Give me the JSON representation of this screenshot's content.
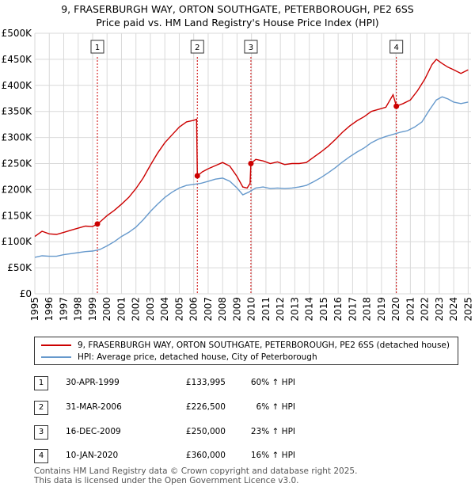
{
  "title_line1": "9, FRASERBURGH WAY, ORTON SOUTHGATE, PETERBOROUGH, PE2 6SS",
  "title_line2": "Price paid vs. HM Land Registry's House Price Index (HPI)",
  "legend": {
    "property": "9, FRASERBURGH WAY, ORTON SOUTHGATE, PETERBOROUGH, PE2 6SS (detached house)",
    "hpi": "HPI: Average price, detached house, City of Peterborough"
  },
  "colors": {
    "property": "#cc0000",
    "hpi": "#6699cc",
    "grid": "#d9d9d9",
    "marker_line": "#cc0000"
  },
  "sales": [
    {
      "num": "1",
      "date": "30-APR-1999",
      "price": "£133,995",
      "hpi": "60% ↑ HPI"
    },
    {
      "num": "2",
      "date": "31-MAR-2006",
      "price": "£226,500",
      "hpi": "6% ↑ HPI"
    },
    {
      "num": "3",
      "date": "16-DEC-2009",
      "price": "£250,000",
      "hpi": "23% ↑ HPI"
    },
    {
      "num": "4",
      "date": "10-JAN-2020",
      "price": "£360,000",
      "hpi": "16% ↑ HPI"
    }
  ],
  "footer_line1": "Contains HM Land Registry data © Crown copyright and database right 2025.",
  "footer_line2": "This data is licensed under the Open Government Licence v3.0.",
  "chart_data": {
    "type": "line",
    "xlim": [
      1995.0,
      2025.2
    ],
    "ylim": [
      0,
      500000
    ],
    "y_ticks": [
      0,
      50000,
      100000,
      150000,
      200000,
      250000,
      300000,
      350000,
      400000,
      450000,
      500000
    ],
    "y_tick_labels": [
      "£0",
      "£50K",
      "£100K",
      "£150K",
      "£200K",
      "£250K",
      "£300K",
      "£350K",
      "£400K",
      "£450K",
      "£500K"
    ],
    "x_ticks": [
      1995,
      1996,
      1997,
      1998,
      1999,
      2000,
      2001,
      2002,
      2003,
      2004,
      2005,
      2006,
      2007,
      2008,
      2009,
      2010,
      2011,
      2012,
      2013,
      2014,
      2015,
      2016,
      2017,
      2018,
      2019,
      2020,
      2021,
      2022,
      2023,
      2024,
      2025
    ],
    "grid": true,
    "sale_markers": [
      {
        "label": "1",
        "x": 1999.33,
        "y": 133995
      },
      {
        "label": "2",
        "x": 2006.25,
        "y": 226500
      },
      {
        "label": "3",
        "x": 2009.96,
        "y": 250000
      },
      {
        "label": "4",
        "x": 2020.03,
        "y": 360000
      }
    ],
    "series": [
      {
        "name": "9, FRASERBURGH WAY, ORTON SOUTHGATE, PETERBOROUGH, PE2 6SS (detached house)",
        "points": [
          [
            1995.0,
            110000
          ],
          [
            1995.5,
            120000
          ],
          [
            1996.0,
            115000
          ],
          [
            1996.5,
            114000
          ],
          [
            1997.0,
            118000
          ],
          [
            1997.5,
            122000
          ],
          [
            1998.0,
            126000
          ],
          [
            1998.5,
            130000
          ],
          [
            1999.0,
            129000
          ],
          [
            1999.33,
            133995
          ],
          [
            1999.6,
            140000
          ],
          [
            2000.0,
            150000
          ],
          [
            2000.5,
            160000
          ],
          [
            2001.0,
            172000
          ],
          [
            2001.5,
            185000
          ],
          [
            2002.0,
            202000
          ],
          [
            2002.5,
            222000
          ],
          [
            2003.0,
            247000
          ],
          [
            2003.5,
            270000
          ],
          [
            2004.0,
            290000
          ],
          [
            2004.5,
            305000
          ],
          [
            2005.0,
            320000
          ],
          [
            2005.5,
            330000
          ],
          [
            2006.0,
            333000
          ],
          [
            2006.2,
            335000
          ],
          [
            2006.25,
            226500
          ],
          [
            2006.6,
            234000
          ],
          [
            2007.0,
            240000
          ],
          [
            2007.5,
            246000
          ],
          [
            2008.0,
            252000
          ],
          [
            2008.5,
            245000
          ],
          [
            2009.0,
            225000
          ],
          [
            2009.4,
            205000
          ],
          [
            2009.7,
            203000
          ],
          [
            2009.9,
            212000
          ],
          [
            2009.96,
            250000
          ],
          [
            2010.3,
            258000
          ],
          [
            2010.8,
            255000
          ],
          [
            2011.3,
            250000
          ],
          [
            2011.8,
            253000
          ],
          [
            2012.3,
            248000
          ],
          [
            2012.8,
            250000
          ],
          [
            2013.3,
            250000
          ],
          [
            2013.8,
            252000
          ],
          [
            2014.3,
            262000
          ],
          [
            2014.8,
            272000
          ],
          [
            2015.3,
            283000
          ],
          [
            2015.8,
            296000
          ],
          [
            2016.3,
            310000
          ],
          [
            2016.8,
            322000
          ],
          [
            2017.3,
            332000
          ],
          [
            2017.8,
            340000
          ],
          [
            2018.3,
            350000
          ],
          [
            2018.8,
            354000
          ],
          [
            2019.3,
            358000
          ],
          [
            2019.8,
            382000
          ],
          [
            2020.03,
            360000
          ],
          [
            2020.5,
            365000
          ],
          [
            2021.0,
            372000
          ],
          [
            2021.5,
            390000
          ],
          [
            2022.0,
            412000
          ],
          [
            2022.5,
            440000
          ],
          [
            2022.8,
            450000
          ],
          [
            2023.2,
            442000
          ],
          [
            2023.6,
            435000
          ],
          [
            2024.0,
            430000
          ],
          [
            2024.5,
            423000
          ],
          [
            2025.0,
            430000
          ]
        ]
      },
      {
        "name": "HPI: Average price, detached house, City of Peterborough",
        "points": [
          [
            1995.0,
            70000
          ],
          [
            1995.5,
            73000
          ],
          [
            1996.0,
            72000
          ],
          [
            1996.5,
            72000
          ],
          [
            1997.0,
            75000
          ],
          [
            1997.5,
            77000
          ],
          [
            1998.0,
            79000
          ],
          [
            1998.5,
            81000
          ],
          [
            1999.0,
            82000
          ],
          [
            1999.5,
            85000
          ],
          [
            2000.0,
            92000
          ],
          [
            2000.5,
            100000
          ],
          [
            2001.0,
            110000
          ],
          [
            2001.5,
            118000
          ],
          [
            2002.0,
            128000
          ],
          [
            2002.5,
            142000
          ],
          [
            2003.0,
            158000
          ],
          [
            2003.5,
            172000
          ],
          [
            2004.0,
            185000
          ],
          [
            2004.5,
            195000
          ],
          [
            2005.0,
            203000
          ],
          [
            2005.5,
            208000
          ],
          [
            2006.0,
            210000
          ],
          [
            2006.5,
            212000
          ],
          [
            2007.0,
            216000
          ],
          [
            2007.5,
            220000
          ],
          [
            2008.0,
            222000
          ],
          [
            2008.5,
            216000
          ],
          [
            2009.0,
            203000
          ],
          [
            2009.4,
            190000
          ],
          [
            2009.8,
            195000
          ],
          [
            2010.3,
            203000
          ],
          [
            2010.8,
            205000
          ],
          [
            2011.3,
            202000
          ],
          [
            2011.8,
            203000
          ],
          [
            2012.3,
            202000
          ],
          [
            2012.8,
            203000
          ],
          [
            2013.3,
            205000
          ],
          [
            2013.8,
            208000
          ],
          [
            2014.3,
            215000
          ],
          [
            2014.8,
            223000
          ],
          [
            2015.3,
            232000
          ],
          [
            2015.8,
            242000
          ],
          [
            2016.3,
            253000
          ],
          [
            2016.8,
            263000
          ],
          [
            2017.3,
            272000
          ],
          [
            2017.8,
            280000
          ],
          [
            2018.3,
            290000
          ],
          [
            2018.8,
            297000
          ],
          [
            2019.3,
            302000
          ],
          [
            2019.8,
            306000
          ],
          [
            2020.3,
            310000
          ],
          [
            2020.8,
            313000
          ],
          [
            2021.3,
            320000
          ],
          [
            2021.8,
            330000
          ],
          [
            2022.3,
            352000
          ],
          [
            2022.8,
            372000
          ],
          [
            2023.2,
            378000
          ],
          [
            2023.6,
            374000
          ],
          [
            2024.0,
            368000
          ],
          [
            2024.5,
            365000
          ],
          [
            2025.0,
            368000
          ]
        ]
      }
    ]
  }
}
